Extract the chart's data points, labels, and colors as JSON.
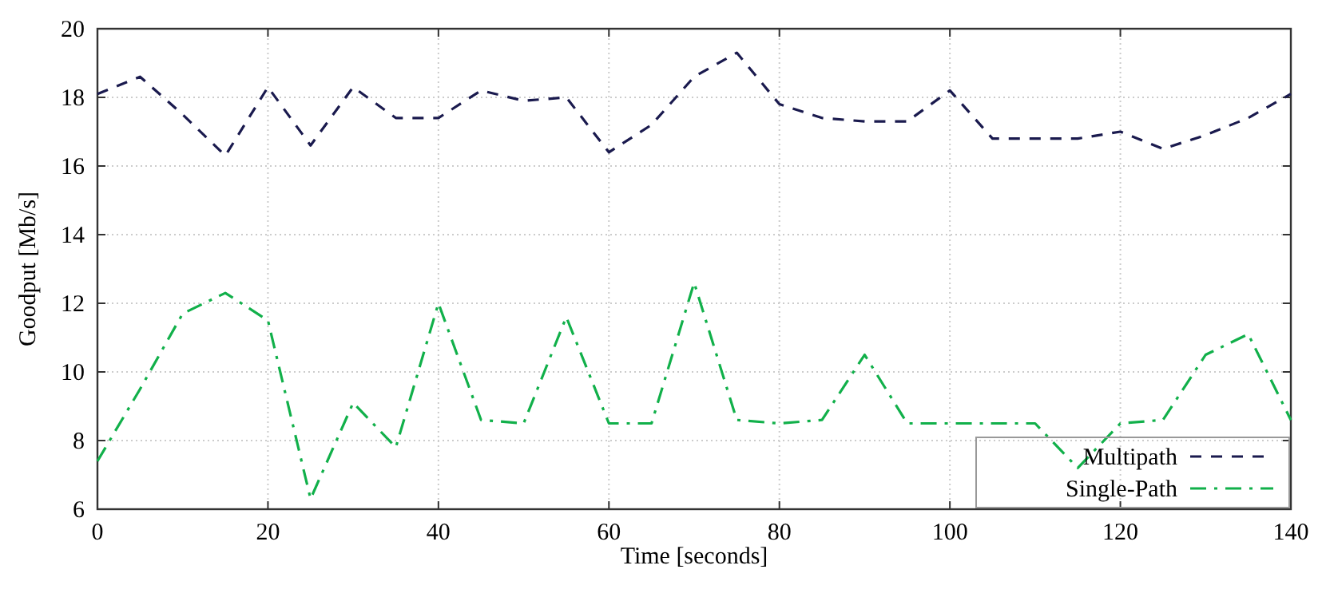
{
  "chart_data": {
    "type": "line",
    "xlabel": "Time [seconds]",
    "ylabel": "Goodput [Mb/s]",
    "x": [
      0,
      5,
      10,
      15,
      20,
      25,
      30,
      35,
      40,
      45,
      50,
      55,
      60,
      65,
      70,
      75,
      80,
      85,
      90,
      95,
      100,
      105,
      110,
      115,
      120,
      125,
      130,
      135,
      140
    ],
    "series": [
      {
        "name": "Multipath",
        "color": "#1a1a4e",
        "line_style": "dashed",
        "values": [
          18.1,
          18.6,
          17.5,
          16.3,
          18.3,
          16.6,
          18.3,
          17.4,
          17.4,
          18.2,
          17.9,
          18.0,
          16.4,
          17.2,
          18.6,
          19.3,
          17.8,
          17.4,
          17.3,
          17.3,
          18.2,
          16.8,
          16.8,
          16.8,
          17.0,
          16.5,
          16.9,
          17.4,
          18.1
        ]
      },
      {
        "name": "Single-Path",
        "color": "#11b04a",
        "line_style": "dashdot",
        "values": [
          7.4,
          9.5,
          11.7,
          12.3,
          11.5,
          6.3,
          9.1,
          7.8,
          12.0,
          8.6,
          8.5,
          11.6,
          8.5,
          8.5,
          12.6,
          8.6,
          8.5,
          8.6,
          10.5,
          8.5,
          8.5,
          8.5,
          8.5,
          7.2,
          8.5,
          8.6,
          10.5,
          11.1,
          8.6
        ]
      }
    ],
    "xlim": [
      0,
      140
    ],
    "xticks": [
      0,
      20,
      40,
      60,
      80,
      100,
      120,
      140
    ],
    "ylim": [
      6,
      20
    ],
    "yticks": [
      6,
      8,
      10,
      12,
      14,
      16,
      18,
      20
    ],
    "grid": true,
    "legend": "bottom right",
    "marker": "none"
  }
}
